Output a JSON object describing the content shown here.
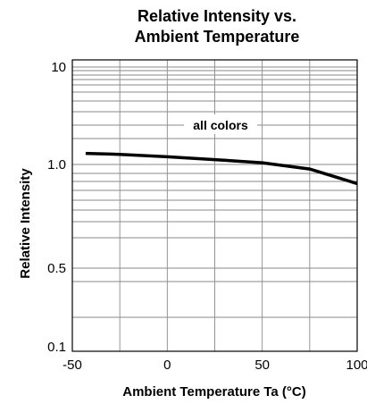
{
  "chart_data": {
    "type": "line",
    "title_lines": [
      "Relative Intensity vs.",
      "Ambient Temperature"
    ],
    "xlabel": "Ambient Temperature Ta (°C)",
    "ylabel": "Relative Intensity",
    "xlim": [
      -50,
      100
    ],
    "x_ticks": [
      -50,
      0,
      50,
      100
    ],
    "x_tick_labels": [
      "-50",
      "0",
      "50",
      "100"
    ],
    "y_tick_labels": [
      "10",
      "1.0",
      "0.5",
      "0.1"
    ],
    "grid": true,
    "annotation": "all colors",
    "series": [
      {
        "x": [
          -43,
          -25,
          0,
          25,
          50,
          75,
          100
        ],
        "y": [
          1.3,
          1.27,
          1.2,
          1.12,
          1.04,
          0.97,
          0.88
        ]
      }
    ]
  }
}
